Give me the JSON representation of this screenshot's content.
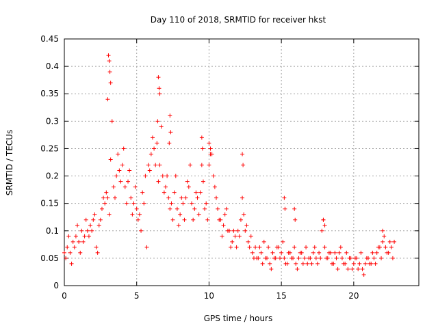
{
  "chart_data": {
    "type": "scatter",
    "title": "Day 110 of 2018, SRMTID for receiver hkst",
    "xlabel": "GPS time / hours",
    "ylabel": "SRMTID / TECUs",
    "xlim": [
      0,
      24.5
    ],
    "ylim": [
      0,
      0.45
    ],
    "x_ticks": [
      0,
      5,
      10,
      15,
      20
    ],
    "x_tick_labels": [
      "0",
      "5",
      "10",
      "15",
      "20"
    ],
    "y_ticks": [
      0,
      0.05,
      0.1,
      0.15,
      0.2,
      0.25,
      0.3,
      0.35,
      0.4,
      0.45
    ],
    "y_tick_labels": [
      "0",
      "0.05",
      "0.1",
      "0.15",
      "0.2",
      "0.25",
      "0.3",
      "0.35",
      "0.4",
      "0.45"
    ],
    "grid": true,
    "marker": "+",
    "color": "#ff0000",
    "series": [
      {
        "x": [
          0.0,
          0.2,
          0.4,
          0.6,
          0.8,
          1.0,
          1.2,
          1.4,
          1.6,
          1.8,
          2.0,
          2.2,
          2.4,
          2.6,
          2.8,
          3.0,
          3.2,
          3.4,
          3.6,
          3.8,
          4.0,
          4.2,
          4.4,
          4.6,
          4.8,
          5.0,
          5.2,
          5.4,
          5.6,
          5.8,
          6.0,
          6.2,
          6.4,
          6.6,
          6.8,
          7.0,
          7.2,
          7.4,
          7.6,
          7.8,
          8.0,
          8.2,
          8.4,
          8.6,
          8.8,
          9.0,
          9.2,
          9.4,
          9.6,
          9.8,
          10.0,
          10.2,
          10.4,
          10.6,
          10.8,
          11.0,
          11.2,
          11.4,
          11.6,
          11.8,
          12.0,
          12.2,
          12.4,
          12.6,
          12.8,
          13.0,
          13.2,
          13.4,
          13.6,
          13.8,
          14.0,
          14.2,
          14.4,
          14.6,
          14.8,
          15.0,
          15.2,
          15.4,
          15.6,
          15.8,
          16.0,
          16.2,
          16.4,
          16.6,
          16.8,
          17.0,
          17.2,
          17.4,
          17.6,
          17.8,
          18.0,
          18.2,
          18.4,
          18.6,
          18.8,
          19.0,
          19.2,
          19.4,
          19.6,
          19.8,
          20.0,
          20.2,
          20.4,
          20.6,
          20.8,
          21.0,
          21.2,
          21.4,
          21.6,
          21.8,
          22.0,
          22.2,
          22.4,
          22.6,
          22.8
        ],
        "y": [
          0.06,
          0.07,
          0.06,
          0.08,
          0.09,
          0.08,
          0.1,
          0.09,
          0.1,
          0.11,
          0.12,
          0.07,
          0.11,
          0.14,
          0.15,
          0.16,
          0.23,
          0.18,
          0.2,
          0.21,
          0.22,
          0.18,
          0.19,
          0.16,
          0.15,
          0.14,
          0.13,
          0.17,
          0.2,
          0.22,
          0.24,
          0.25,
          0.26,
          0.22,
          0.2,
          0.18,
          0.16,
          0.15,
          0.17,
          0.14,
          0.13,
          0.15,
          0.16,
          0.18,
          0.15,
          0.14,
          0.16,
          0.17,
          0.19,
          0.15,
          0.22,
          0.24,
          0.18,
          0.14,
          0.12,
          0.11,
          0.14,
          0.1,
          0.08,
          0.09,
          0.1,
          0.12,
          0.13,
          0.11,
          0.07,
          0.06,
          0.07,
          0.05,
          0.06,
          0.08,
          0.05,
          0.04,
          0.06,
          0.05,
          0.07,
          0.06,
          0.05,
          0.04,
          0.06,
          0.05,
          0.04,
          0.05,
          0.06,
          0.05,
          0.04,
          0.05,
          0.06,
          0.05,
          0.06,
          0.1,
          0.07,
          0.05,
          0.06,
          0.04,
          0.05,
          0.06,
          0.05,
          0.04,
          0.03,
          0.05,
          0.04,
          0.05,
          0.04,
          0.03,
          0.04,
          0.05,
          0.04,
          0.05,
          0.06,
          0.07,
          0.08,
          0.07,
          0.06,
          0.07,
          0.08
        ]
      },
      {
        "x": [
          0.1,
          0.3,
          0.5,
          0.7,
          0.9,
          1.1,
          1.3,
          1.5,
          1.7,
          1.9,
          2.1,
          2.3,
          2.5,
          2.7,
          2.9,
          3.1,
          3.3,
          3.5,
          3.7,
          3.9,
          4.1,
          4.3,
          4.5,
          4.7,
          4.9,
          5.1,
          5.3,
          5.5,
          5.7,
          5.9,
          6.1,
          6.3,
          6.5,
          6.7,
          6.9,
          7.1,
          7.3,
          7.5,
          7.7,
          7.9,
          8.1,
          8.3,
          8.5,
          8.7,
          8.9,
          9.1,
          9.3,
          9.5,
          9.7,
          9.9,
          10.1,
          10.3,
          10.5,
          10.7,
          10.9,
          11.1,
          11.3,
          11.5,
          11.7,
          11.9,
          12.1,
          12.3,
          12.5,
          12.7,
          12.9,
          13.1,
          13.3,
          13.5,
          13.7,
          13.9,
          14.1,
          14.3,
          14.5,
          14.7,
          14.9,
          15.1,
          15.3,
          15.5,
          15.7,
          15.9,
          16.1,
          16.3,
          16.5,
          16.7,
          16.9,
          17.1,
          17.3,
          17.5,
          17.7,
          17.9,
          18.1,
          18.3,
          18.5,
          18.7,
          18.9,
          19.1,
          19.3,
          19.5,
          19.7,
          19.9,
          20.1,
          20.3,
          20.5,
          20.7,
          20.9,
          21.1,
          21.3,
          21.5,
          21.7,
          21.9,
          22.1,
          22.3,
          22.5,
          22.7
        ],
        "y": [
          0.05,
          0.09,
          0.04,
          0.07,
          0.11,
          0.06,
          0.08,
          0.12,
          0.09,
          0.1,
          0.13,
          0.06,
          0.12,
          0.16,
          0.17,
          0.13,
          0.3,
          0.16,
          0.24,
          0.19,
          0.25,
          0.15,
          0.21,
          0.13,
          0.18,
          0.12,
          0.1,
          0.15,
          0.07,
          0.21,
          0.27,
          0.22,
          0.19,
          0.29,
          0.17,
          0.2,
          0.14,
          0.12,
          0.2,
          0.11,
          0.16,
          0.12,
          0.19,
          0.22,
          0.12,
          0.17,
          0.13,
          0.22,
          0.14,
          0.12,
          0.25,
          0.2,
          0.16,
          0.12,
          0.09,
          0.13,
          0.1,
          0.07,
          0.1,
          0.07,
          0.09,
          0.16,
          0.1,
          0.08,
          0.09,
          0.05,
          0.05,
          0.07,
          0.04,
          0.05,
          0.07,
          0.03,
          0.05,
          0.07,
          0.05,
          0.08,
          0.04,
          0.06,
          0.05,
          0.07,
          0.03,
          0.06,
          0.04,
          0.07,
          0.05,
          0.04,
          0.07,
          0.04,
          0.05,
          0.12,
          0.05,
          0.06,
          0.04,
          0.06,
          0.03,
          0.07,
          0.04,
          0.06,
          0.05,
          0.03,
          0.05,
          0.03,
          0.06,
          0.02,
          0.05,
          0.04,
          0.06,
          0.04,
          0.07,
          0.05,
          0.09,
          0.06,
          0.08,
          0.05
        ]
      },
      {
        "x": [
          3.05,
          3.1,
          3.15,
          3.2,
          3.0,
          6.5,
          6.55,
          6.6,
          6.45,
          7.3,
          7.35,
          7.25,
          9.5,
          9.55,
          10.0,
          10.1,
          12.3,
          12.35,
          15.2,
          15.25,
          15.9,
          15.95,
          17.9,
          18.0,
          22.0
        ],
        "y": [
          0.42,
          0.41,
          0.39,
          0.37,
          0.34,
          0.38,
          0.36,
          0.35,
          0.3,
          0.31,
          0.28,
          0.26,
          0.27,
          0.25,
          0.26,
          0.24,
          0.24,
          0.22,
          0.16,
          0.14,
          0.14,
          0.12,
          0.12,
          0.11,
          0.1
        ]
      }
    ]
  }
}
